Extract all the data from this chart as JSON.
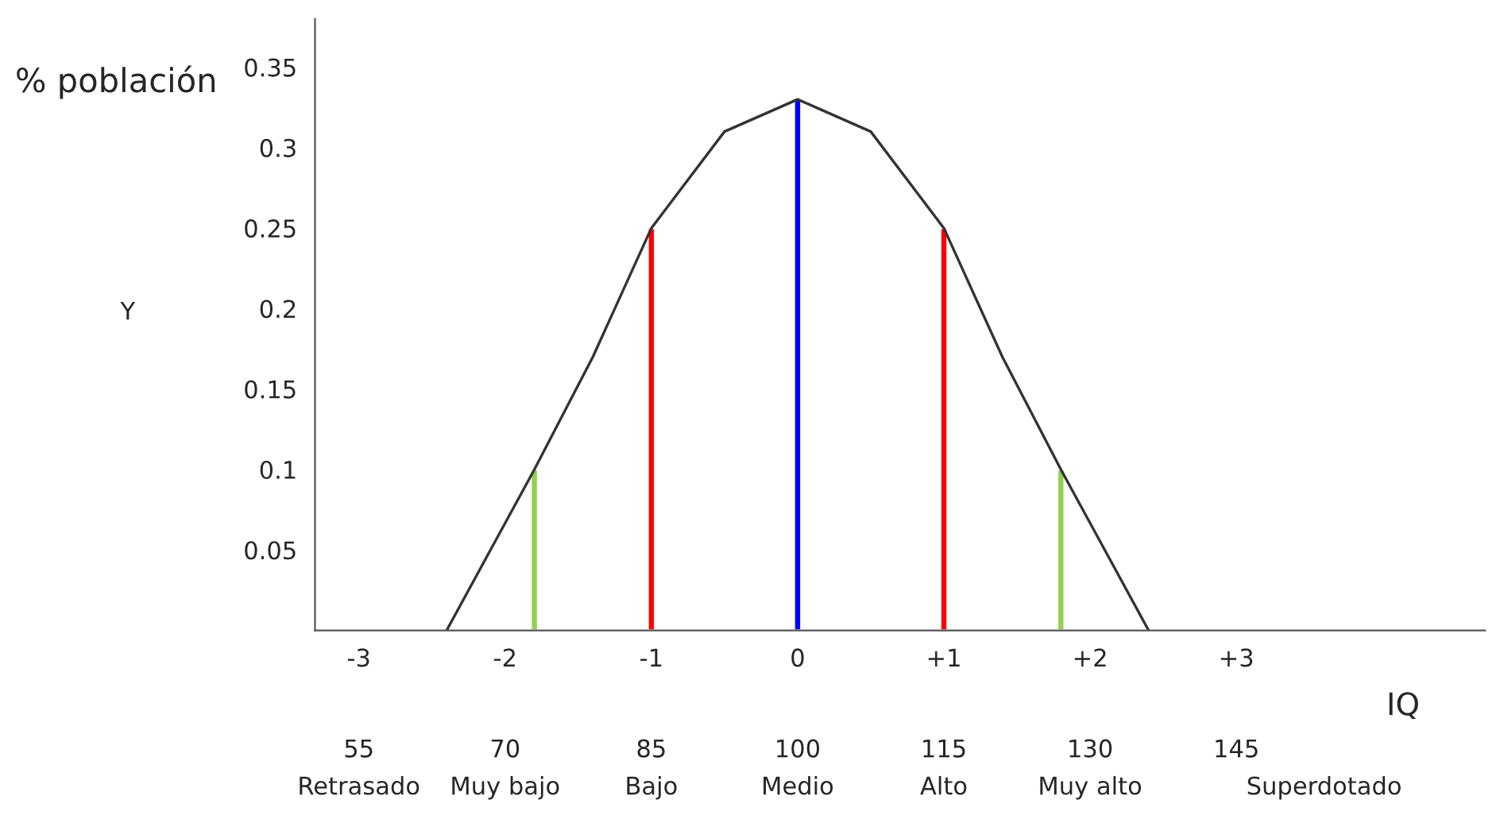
{
  "chart_data": {
    "type": "line",
    "title": "% población",
    "xlabel": "IQ",
    "ylabel": "Y",
    "xlim": [
      -3.3,
      4.7
    ],
    "xticks": [
      -3,
      -2,
      -1,
      0,
      {
        "value": 1,
        "label": "+1"
      },
      {
        "value": 2,
        "label": "+2"
      },
      {
        "value": 3,
        "label": "+3"
      }
    ],
    "x2lim": [
      50.5,
      170.5
    ],
    "x2ticks": [
      55,
      70,
      85,
      100,
      115,
      130,
      145
    ],
    "annotations": [
      "Retrasado",
      "Muy bajo",
      "Bajo",
      "Medio",
      "Alto",
      "Muy alto",
      "Superdotado"
    ],
    "ylim": [
      0,
      0.38
    ],
    "yticks": [
      0.05,
      0.1,
      0.15,
      0.2,
      0.25,
      0.3,
      0.35
    ],
    "grid": false,
    "series": [
      {
        "color": "#333333",
        "x": [
          -2.4,
          -2.1,
          -1.8,
          -1.4,
          -1,
          -0.5,
          0,
          0.5,
          1,
          1.4,
          1.8,
          2.1,
          2.4
        ],
        "values": [
          0,
          0.05,
          0.1,
          0.17,
          0.25,
          0.31,
          0.33,
          0.31,
          0.25,
          0.17,
          0.1,
          0.05,
          0
        ]
      },
      {
        "type": "bar",
        "x": [
          -1.8,
          -1,
          0,
          1,
          1.8
        ],
        "values": [
          0.1,
          0.25,
          0.33,
          0.25,
          0.1
        ],
        "colors": [
          "#92d050",
          "#ff0000",
          "#0000ff",
          "#ff0000",
          "#92d050"
        ]
      }
    ]
  }
}
